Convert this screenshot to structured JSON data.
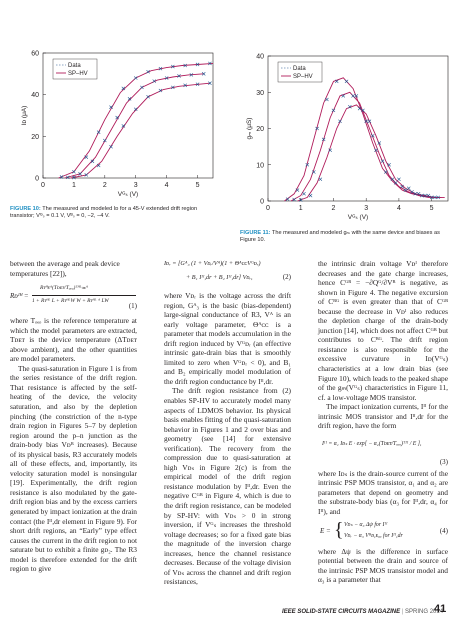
{
  "figures": [
    {
      "caption_label": "FIGURE 10:",
      "caption_text": "The measured and modeled Iᴅ for a 45-V extended drift region transistor; Vᴳₛ = 0.1 V, Vᴮₛ = 0, −2, −4 V.",
      "chart_data": {
        "type": "scatter+line",
        "xlabel": "Vᴳₛ (V)",
        "ylabel": "Iᴅ (μA)",
        "xlim": [
          0,
          5.5
        ],
        "ylim": [
          0,
          60
        ],
        "xticks": [
          "0",
          "1",
          "2",
          "3",
          "4",
          "5"
        ],
        "yticks": [
          "0",
          "20",
          "40",
          "60"
        ],
        "legend": [
          "Data",
          "SP–HV"
        ],
        "series": [
          {
            "name": "Data",
            "marker": "x",
            "curves": [
              {
                "x": [
                  0.6,
                  1.0,
                  1.4,
                  1.8,
                  2.2,
                  2.6,
                  3.0,
                  3.4,
                  3.8,
                  4.2,
                  4.6,
                  5.0,
                  5.4
                ],
                "y": [
                  0.5,
                  3,
                  10,
                  22,
                  34,
                  43,
                  48,
                  51,
                  52.5,
                  53.5,
                  54,
                  54.5,
                  55
                ]
              },
              {
                "x": [
                  0.8,
                  1.2,
                  1.6,
                  2.0,
                  2.4,
                  2.8,
                  3.2,
                  3.6,
                  4.0,
                  4.4,
                  4.8,
                  5.2
                ],
                "y": [
                  0.3,
                  2,
                  8,
                  18,
                  29,
                  38,
                  43.5,
                  46.5,
                  48,
                  49,
                  49.5,
                  50
                ]
              },
              {
                "x": [
                  1.0,
                  1.4,
                  1.8,
                  2.2,
                  2.6,
                  3.0,
                  3.4,
                  3.8,
                  4.2,
                  4.6,
                  5.0,
                  5.4
                ],
                "y": [
                  0.2,
                  1.5,
                  6,
                  15,
                  25,
                  33,
                  39,
                  42,
                  43.5,
                  44.5,
                  45,
                  45.5
                ]
              }
            ]
          },
          {
            "name": "SP–HV",
            "curves": [
              {
                "x": [
                  0.5,
                  1.0,
                  1.5,
                  2.0,
                  2.5,
                  3.0,
                  3.5,
                  4.0,
                  4.5,
                  5.0,
                  5.5
                ],
                "y": [
                  0,
                  3,
                  13,
                  28,
                  41,
                  48,
                  51.5,
                  53,
                  54,
                  54.5,
                  55
                ]
              },
              {
                "x": [
                  0.7,
                  1.2,
                  1.7,
                  2.2,
                  2.7,
                  3.2,
                  3.7,
                  4.2,
                  4.7,
                  5.2
                ],
                "y": [
                  0,
                  2,
                  10,
                  23,
                  36,
                  43.5,
                  47,
                  48.5,
                  49.5,
                  50
                ]
              },
              {
                "x": [
                  0.9,
                  1.4,
                  1.9,
                  2.4,
                  2.9,
                  3.4,
                  3.9,
                  4.4,
                  4.9,
                  5.4
                ],
                "y": [
                  0,
                  1.5,
                  8,
                  20,
                  31,
                  39,
                  42.5,
                  44,
                  44.8,
                  45.5
                ]
              }
            ]
          }
        ]
      }
    },
    {
      "caption_label": "FIGURE 11:",
      "caption_text": "The measured and modeled gₘ with the same device and biases as Figure 10.",
      "chart_data": {
        "type": "scatter+line",
        "xlabel": "Vᴳₛ (V)",
        "ylabel": "gₘ (μS)",
        "xlim": [
          0,
          5.5
        ],
        "ylim": [
          0,
          40
        ],
        "xticks": [
          "0",
          "1",
          "2",
          "3",
          "4",
          "5"
        ],
        "yticks": [
          "0",
          "10",
          "20",
          "30",
          "40"
        ],
        "legend": [
          "Data",
          "SP–HV"
        ],
        "series": [
          {
            "name": "Data",
            "marker": "x",
            "curves": [
              {
                "x": [
                  0.6,
                  0.9,
                  1.2,
                  1.5,
                  1.8,
                  2.1,
                  2.4,
                  2.7,
                  3.0,
                  3.3,
                  3.6,
                  3.9,
                  4.2,
                  4.5,
                  4.8,
                  5.1
                ],
                "y": [
                  0.5,
                  3,
                  10,
                  20,
                  28,
                  33,
                  33,
                  29,
                  22,
                  14,
                  8,
                  5,
                  3,
                  2,
                  1.5,
                  1
                ]
              },
              {
                "x": [
                  0.8,
                  1.1,
                  1.4,
                  1.7,
                  2.0,
                  2.3,
                  2.6,
                  2.9,
                  3.2,
                  3.5,
                  3.8,
                  4.1,
                  4.4,
                  4.7,
                  5.0
                ],
                "y": [
                  0.4,
                  2,
                  8,
                  17,
                  25,
                  29,
                  29,
                  25,
                  18,
                  11,
                  6,
                  4,
                  2.5,
                  1.5,
                  1
                ]
              },
              {
                "x": [
                  1.0,
                  1.3,
                  1.6,
                  1.9,
                  2.2,
                  2.5,
                  2.8,
                  3.1,
                  3.4,
                  3.7,
                  4.0,
                  4.3,
                  4.6,
                  4.9,
                  5.2
                ],
                "y": [
                  0.3,
                  1.5,
                  6,
                  14,
                  22,
                  26,
                  25.5,
                  22,
                  16,
                  10,
                  6,
                  3.5,
                  2,
                  1.5,
                  1
                ]
              }
            ]
          },
          {
            "name": "SP–HV",
            "curves": [
              {
                "x": [
                  0.5,
                  0.8,
                  1.1,
                  1.4,
                  1.7,
                  2.0,
                  2.3,
                  2.6,
                  2.9,
                  3.2,
                  3.5,
                  3.8,
                  4.1,
                  4.4,
                  4.7,
                  5.0,
                  5.3
                ],
                "y": [
                  0,
                  2,
                  7,
                  17,
                  27,
                  33,
                  34,
                  31,
                  24,
                  16,
                  9,
                  5.5,
                  3,
                  2,
                  1.5,
                  1,
                  1
                ]
              },
              {
                "x": [
                  0.7,
                  1.0,
                  1.3,
                  1.6,
                  1.9,
                  2.2,
                  2.5,
                  2.8,
                  3.1,
                  3.4,
                  3.7,
                  4.0,
                  4.3,
                  4.6,
                  4.9,
                  5.2
                ],
                "y": [
                  0,
                  1.5,
                  6,
                  14,
                  23,
                  29,
                  30,
                  27,
                  20,
                  13,
                  7,
                  4,
                  2.5,
                  1.5,
                  1,
                  1
                ]
              },
              {
                "x": [
                  0.9,
                  1.2,
                  1.5,
                  1.8,
                  2.1,
                  2.4,
                  2.7,
                  3.0,
                  3.3,
                  3.6,
                  3.9,
                  4.2,
                  4.5,
                  4.8,
                  5.1,
                  5.4
                ],
                "y": [
                  0,
                  1,
                  5,
                  12,
                  20,
                  25.5,
                  26.5,
                  24,
                  18,
                  11,
                  6,
                  3.5,
                  2,
                  1.5,
                  1,
                  1
                ]
              }
            ]
          }
        ]
      }
    }
  ],
  "col1": {
    "p1": "between the average and peak device temperatures [22]),",
    "eq1_lhs": "Rᴅᴵᴴ =",
    "eq1_num": "Rᴛᴴᴇᴬ(Tᴅᴇᴛ/Tₒₑₒ)ᵀᴴᴸᴞᴬ",
    "eq1_den": "1 + Rᴛᴴᴸ L + RᴛᴴᴸW W + Rᴛᴴᴸ ᴬ LW",
    "eq1_num_label": "(1)",
    "p2": "where Tₒₑₒ is the reference temperature at which the model parameters are extracted, Tᴅᴇᴛ is the device temperature (ΔTᴅᴇᴛ above ambient), and the other quantities are model parameters.",
    "p3": "The quasi-saturation in Figure 1 is from the series resistance of the drift region. That resistance is affected by the self-heating of the device, the velocity saturation, and also by the depletion pinching (the constriction of the n-type drain region in Figures 5–7 by depletion region around the p–n junction as the drain-body bias Vᴅᴮ increases). Because of its physical basis, R3 accurately models all of these effects, and, importantly, its velocity saturation model is nonsingular [19]. Experimentally, the drift region resistance is also modulated by the gate-drift region bias and by the excess carriers generated by impact ionization at the drain contact (the Iᴵᴵ,dr element in Figure 9). For short drift regions, an “Early” type effect causes the current in the drift region to not saturate but to exhibit a finite gᴅ₂. The R3 model is therefore extended for the drift region to give"
  },
  "col2": {
    "eq2_line1": "Iᴅᵣ = [Gᴬ₃ (1 + Vᴅᵣ/Vᴬ)(1 + ΘᴬᴄᴄVᴳᴅᵣ)",
    "eq2_line2": "+ B₁ Iᴵᴵ,dr + B₂ Iᴵᴵ,dr] Vᴅᵣ,",
    "eq2_label": "(2)",
    "p1": "where Vᴅᵣ is the voltage across the drift region, Gᴬ₃ is the basic (bias-dependent) large-signal conductance of R3, Vᴬ is an early voltage parameter, Θᴬᴄᴄ is a parameter that models accumulation in the drift region induced by Vᴳᴅᵣ (an effective intrinsic gate-drain bias that is smoothly limited to zero when Vᴳᴅᵣ < 0), and B₁ and B₂ empirically model modulation of the drift region conductance by Iᴵᴵ,dr.",
    "p2": "The drift region resistance from (2) enables SP-HV to accurately model many aspects of LDMOS behavior. Its physical basis enables fitting of the quasi-saturation behavior in Figures 1 and 2 over bias and geometry (see [14] for extensive verification). The recovery from the compression due to quasi-saturation at high Vᴅₛ in Figure 2(c) is from the empirical model of the drift region resistance modulation by Iᴵᴵ,dr. Even the negative Cᴳᴮ in Figure 4, which is due to the drift region resistance, can be modeled by SP-HV: with Vᴅₛ > 0 in strong inversion, if Vᴳₛ increases the threshold voltage decreases; so for a fixed gate bias the magnitude of the inversion charge increases, hence the channel resistance decreases. Because of the voltage division of Vᴅₛ across the channel and drift region resistances,"
  },
  "col3": {
    "p1": "the intrinsic drain voltage Vᴅᴵ therefore decreases and the gate charge increases, hence Cᴳᴮ = −∂Qᴳ/∂Vᴮ is negative, as shown in Figure 4. The negative excursion of Cᴮᴳ is even greater than that of Cᴳᴮ because the decrease in Vᴅᴵ also reduces the depletion charge of the drain-body junction [14], which does not affect Cᴳᴮ but contributes to Cᴮᴳ. The drift region resistance is also responsible for the excessive curvature in Iᴅ(Vᴳₛ) characteristics at a low drain bias (see Figure 10), which leads to the peaked shape of the gₘ(Vᴳₛ) characteristics in Figure 11, cf. a low-voltage MOS transistor.",
    "p2": "The impact ionization currents, Iᴵᴵ for the intrinsic MOS transistor and Iᴵᴵ,dr for the drift region, have the form",
    "eq3": "Iᴵᴵ = α₁ Iᴅₛ E · exp[ − α₂(Tᴅᴇᴛ/Tₒₑₒ)ᵀᴵᴵ / E ],",
    "eq3_label": "(3)",
    "p3": "where Iᴅₛ is the drain-source current of the intrinsic PSP MOS transistor, α₁ and α₂ are parameters that depend on geometry and the substrate-body bias (α₃ for Iᴵᴵ,dr, α₄ for Iᴵᴵ), and",
    "eq4_lhs": "E =",
    "eq4_row1": "Vᴅₛ − α₃ Δψ   for Iᴵᴵ",
    "eq4_row2": "Vᴅᵣ − α₃ Vᴮᴅ,ᴇₒ₀   for Iᴵᴵ,dr",
    "eq4_label": "(4)",
    "p4": "where Δψ is the difference in surface potential between the drain and source of the intrinsic PSP MOS transistor model and α₃ is a parameter that"
  },
  "footer": {
    "journal": "IEEE SOLID-STATE CIRCUITS MAGAZINE",
    "sep": "|",
    "season": "SPRING 2014",
    "page": "41"
  }
}
